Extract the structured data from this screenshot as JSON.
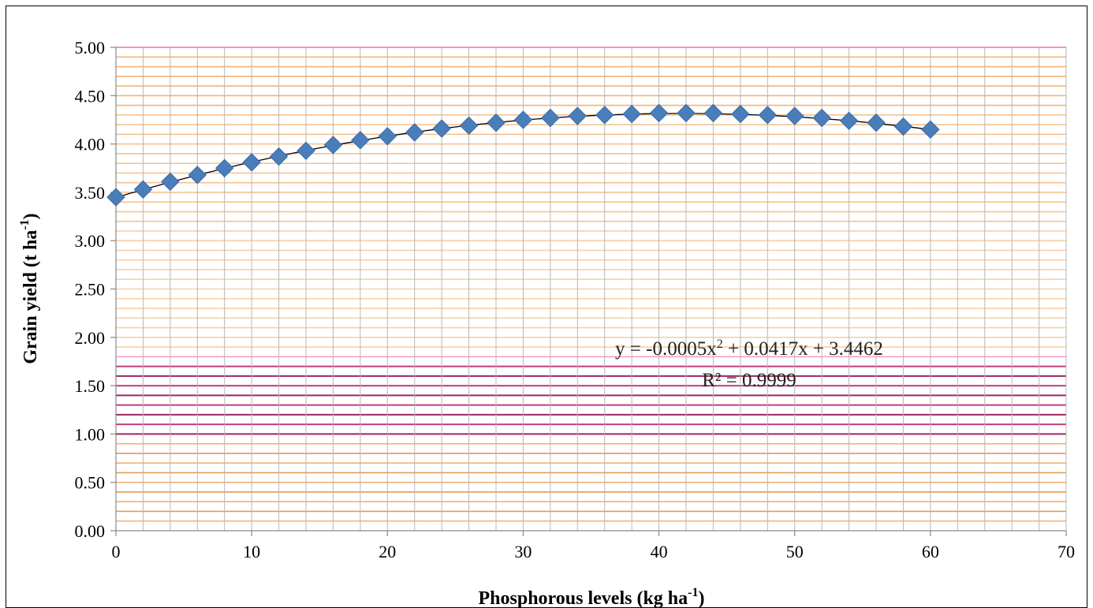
{
  "chart_data": {
    "type": "scatter",
    "xlabel": "Phosphorous levels (kg ha",
    "xlabel_sup": "-1",
    "xlabel_end": ")",
    "ylabel": "Grain yield (t ha",
    "ylabel_sup": "-1",
    "ylabel_end": ")",
    "xlim": [
      0,
      70
    ],
    "ylim": [
      0,
      5
    ],
    "x_ticks": [
      0,
      10,
      20,
      30,
      40,
      50,
      60,
      70
    ],
    "y_ticks": [
      "0.00",
      "0.50",
      "1.00",
      "1.50",
      "2.00",
      "2.50",
      "3.00",
      "3.50",
      "4.00",
      "4.50",
      "5.00"
    ],
    "grid": true,
    "series": [
      {
        "marker": "diamond",
        "color": "#4a7ebb",
        "x": [
          0,
          2,
          4,
          6,
          8,
          10,
          12,
          14,
          16,
          18,
          20,
          22,
          24,
          26,
          28,
          30,
          32,
          34,
          36,
          38,
          40,
          42,
          44,
          46,
          48,
          50,
          52,
          54,
          56,
          58,
          60
        ],
        "y": [
          3.45,
          3.53,
          3.61,
          3.68,
          3.75,
          3.81,
          3.87,
          3.93,
          3.99,
          4.04,
          4.08,
          4.12,
          4.16,
          4.19,
          4.22,
          4.25,
          4.27,
          4.29,
          4.3,
          4.31,
          4.32,
          4.32,
          4.32,
          4.31,
          4.3,
          4.29,
          4.27,
          4.24,
          4.22,
          4.18,
          4.15
        ]
      }
    ],
    "trendline": {
      "type": "polynomial",
      "coefficients": [
        -0.0005,
        0.0417,
        3.4462
      ],
      "color": "#000000"
    },
    "annotations": {
      "equation_start": "y = -0.0005x",
      "equation_sup": "2",
      "equation_end": " + 0.0417x + 3.4462",
      "r_squared": "R² = 0.9999"
    }
  }
}
